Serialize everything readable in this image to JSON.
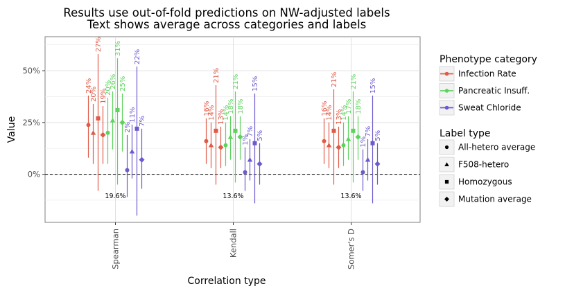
{
  "chart_data": {
    "type": "scatter",
    "title": "Results use out-of-fold predictions on NW-adjusted labels",
    "subtitle": "Text shows average across categories and labels",
    "xlabel": "Correlation type",
    "ylabel": "Value",
    "categories": [
      "Spearman",
      "Kendall",
      "Somer's D"
    ],
    "y_ticks": [
      "0%",
      "25%",
      "50%"
    ],
    "ylim": [
      -0.24,
      0.66
    ],
    "grid": true,
    "reference_line": 0,
    "legend": {
      "placement": "right",
      "color_title": "Phenotype category",
      "shape_title": "Label type"
    },
    "phenotypes": [
      {
        "name": "Infection Rate",
        "color": "#e05a47"
      },
      {
        "name": "Pancreatic Insuff.",
        "color": "#5dd35d"
      },
      {
        "name": "Sweat Chloride",
        "color": "#6a5acd"
      }
    ],
    "label_types": [
      {
        "name": "All-hetero average",
        "shape": "circle"
      },
      {
        "name": "F508-hetero",
        "shape": "triangle"
      },
      {
        "name": "Homozygous",
        "shape": "square"
      },
      {
        "name": "Mutation average",
        "shape": "diamond"
      }
    ],
    "category_averages": [
      "19.6%",
      "13.6%",
      "13.6%"
    ],
    "series": [
      {
        "category": "Spearman",
        "phenotype": "Infection Rate",
        "label_type": "All-hetero average",
        "value": 0.238,
        "low": 0.08,
        "high": 0.38,
        "text": "24%"
      },
      {
        "category": "Spearman",
        "phenotype": "Infection Rate",
        "label_type": "F508-hetero",
        "value": 0.2,
        "low": 0.05,
        "high": 0.34,
        "text": "20%"
      },
      {
        "category": "Spearman",
        "phenotype": "Infection Rate",
        "label_type": "Homozygous",
        "value": 0.27,
        "low": -0.08,
        "high": 0.58,
        "text": "27%"
      },
      {
        "category": "Spearman",
        "phenotype": "Infection Rate",
        "label_type": "Mutation average",
        "value": 0.19,
        "low": 0.05,
        "high": 0.33,
        "text": "19%"
      },
      {
        "category": "Spearman",
        "phenotype": "Pancreatic Insuff.",
        "label_type": "All-hetero average",
        "value": 0.2,
        "low": 0.05,
        "high": 0.37,
        "text": "20%"
      },
      {
        "category": "Spearman",
        "phenotype": "Pancreatic Insuff.",
        "label_type": "F508-hetero",
        "value": 0.26,
        "low": 0.12,
        "high": 0.4,
        "text": "26%"
      },
      {
        "category": "Spearman",
        "phenotype": "Pancreatic Insuff.",
        "label_type": "Homozygous",
        "value": 0.31,
        "low": -0.05,
        "high": 0.56,
        "text": "31%"
      },
      {
        "category": "Spearman",
        "phenotype": "Pancreatic Insuff.",
        "label_type": "Mutation average",
        "value": 0.25,
        "low": 0.11,
        "high": 0.39,
        "text": "25%"
      },
      {
        "category": "Spearman",
        "phenotype": "Sweat Chloride",
        "label_type": "All-hetero average",
        "value": 0.02,
        "low": -0.11,
        "high": 0.19,
        "text": "2%"
      },
      {
        "category": "Spearman",
        "phenotype": "Sweat Chloride",
        "label_type": "F508-hetero",
        "value": 0.11,
        "low": -0.02,
        "high": 0.24,
        "text": "11%"
      },
      {
        "category": "Spearman",
        "phenotype": "Sweat Chloride",
        "label_type": "Homozygous",
        "value": 0.22,
        "low": -0.2,
        "high": 0.52,
        "text": "22%"
      },
      {
        "category": "Spearman",
        "phenotype": "Sweat Chloride",
        "label_type": "Mutation average",
        "value": 0.07,
        "low": -0.07,
        "high": 0.22,
        "text": "7%"
      },
      {
        "category": "Kendall",
        "phenotype": "Infection Rate",
        "label_type": "All-hetero average",
        "value": 0.16,
        "low": 0.05,
        "high": 0.27,
        "text": "16%"
      },
      {
        "category": "Kendall",
        "phenotype": "Infection Rate",
        "label_type": "F508-hetero",
        "value": 0.14,
        "low": 0.03,
        "high": 0.25,
        "text": "14%"
      },
      {
        "category": "Kendall",
        "phenotype": "Infection Rate",
        "label_type": "Homozygous",
        "value": 0.21,
        "low": -0.05,
        "high": 0.43,
        "text": "21%"
      },
      {
        "category": "Kendall",
        "phenotype": "Infection Rate",
        "label_type": "Mutation average",
        "value": 0.13,
        "low": 0.03,
        "high": 0.23,
        "text": "13%"
      },
      {
        "category": "Kendall",
        "phenotype": "Pancreatic Insuff.",
        "label_type": "All-hetero average",
        "value": 0.14,
        "low": 0.04,
        "high": 0.25,
        "text": "14%"
      },
      {
        "category": "Kendall",
        "phenotype": "Pancreatic Insuff.",
        "label_type": "F508-hetero",
        "value": 0.18,
        "low": 0.07,
        "high": 0.28,
        "text": "18%"
      },
      {
        "category": "Kendall",
        "phenotype": "Pancreatic Insuff.",
        "label_type": "Homozygous",
        "value": 0.21,
        "low": -0.04,
        "high": 0.4,
        "text": "21%"
      },
      {
        "category": "Kendall",
        "phenotype": "Pancreatic Insuff.",
        "label_type": "Mutation average",
        "value": 0.18,
        "low": 0.07,
        "high": 0.28,
        "text": "18%"
      },
      {
        "category": "Kendall",
        "phenotype": "Sweat Chloride",
        "label_type": "All-hetero average",
        "value": 0.01,
        "low": -0.08,
        "high": 0.13,
        "text": "1%"
      },
      {
        "category": "Kendall",
        "phenotype": "Sweat Chloride",
        "label_type": "F508-hetero",
        "value": 0.07,
        "low": -0.03,
        "high": 0.17,
        "text": "7%"
      },
      {
        "category": "Kendall",
        "phenotype": "Sweat Chloride",
        "label_type": "Homozygous",
        "value": 0.15,
        "low": -0.14,
        "high": 0.39,
        "text": "15%"
      },
      {
        "category": "Kendall",
        "phenotype": "Sweat Chloride",
        "label_type": "Mutation average",
        "value": 0.05,
        "low": -0.05,
        "high": 0.15,
        "text": "5%"
      },
      {
        "category": "Somer's D",
        "phenotype": "Infection Rate",
        "label_type": "All-hetero average",
        "value": 0.16,
        "low": 0.05,
        "high": 0.27,
        "text": "16%"
      },
      {
        "category": "Somer's D",
        "phenotype": "Infection Rate",
        "label_type": "F508-hetero",
        "value": 0.14,
        "low": 0.03,
        "high": 0.25,
        "text": "14%"
      },
      {
        "category": "Somer's D",
        "phenotype": "Infection Rate",
        "label_type": "Homozygous",
        "value": 0.21,
        "low": -0.05,
        "high": 0.41,
        "text": "21%"
      },
      {
        "category": "Somer's D",
        "phenotype": "Infection Rate",
        "label_type": "Mutation average",
        "value": 0.13,
        "low": 0.03,
        "high": 0.23,
        "text": "13%"
      },
      {
        "category": "Somer's D",
        "phenotype": "Pancreatic Insuff.",
        "label_type": "All-hetero average",
        "value": 0.14,
        "low": 0.04,
        "high": 0.25,
        "text": "14%"
      },
      {
        "category": "Somer's D",
        "phenotype": "Pancreatic Insuff.",
        "label_type": "F508-hetero",
        "value": 0.17,
        "low": 0.07,
        "high": 0.28,
        "text": "17%"
      },
      {
        "category": "Somer's D",
        "phenotype": "Pancreatic Insuff.",
        "label_type": "Homozygous",
        "value": 0.21,
        "low": -0.04,
        "high": 0.4,
        "text": "21%"
      },
      {
        "category": "Somer's D",
        "phenotype": "Pancreatic Insuff.",
        "label_type": "Mutation average",
        "value": 0.18,
        "low": 0.07,
        "high": 0.28,
        "text": "18%"
      },
      {
        "category": "Somer's D",
        "phenotype": "Sweat Chloride",
        "label_type": "All-hetero average",
        "value": 0.01,
        "low": -0.08,
        "high": 0.12,
        "text": "1%"
      },
      {
        "category": "Somer's D",
        "phenotype": "Sweat Chloride",
        "label_type": "F508-hetero",
        "value": 0.07,
        "low": -0.03,
        "high": 0.17,
        "text": "7%"
      },
      {
        "category": "Somer's D",
        "phenotype": "Sweat Chloride",
        "label_type": "Homozygous",
        "value": 0.15,
        "low": -0.14,
        "high": 0.38,
        "text": "15%"
      },
      {
        "category": "Somer's D",
        "phenotype": "Sweat Chloride",
        "label_type": "Mutation average",
        "value": 0.05,
        "low": -0.05,
        "high": 0.15,
        "text": "5%"
      }
    ]
  }
}
